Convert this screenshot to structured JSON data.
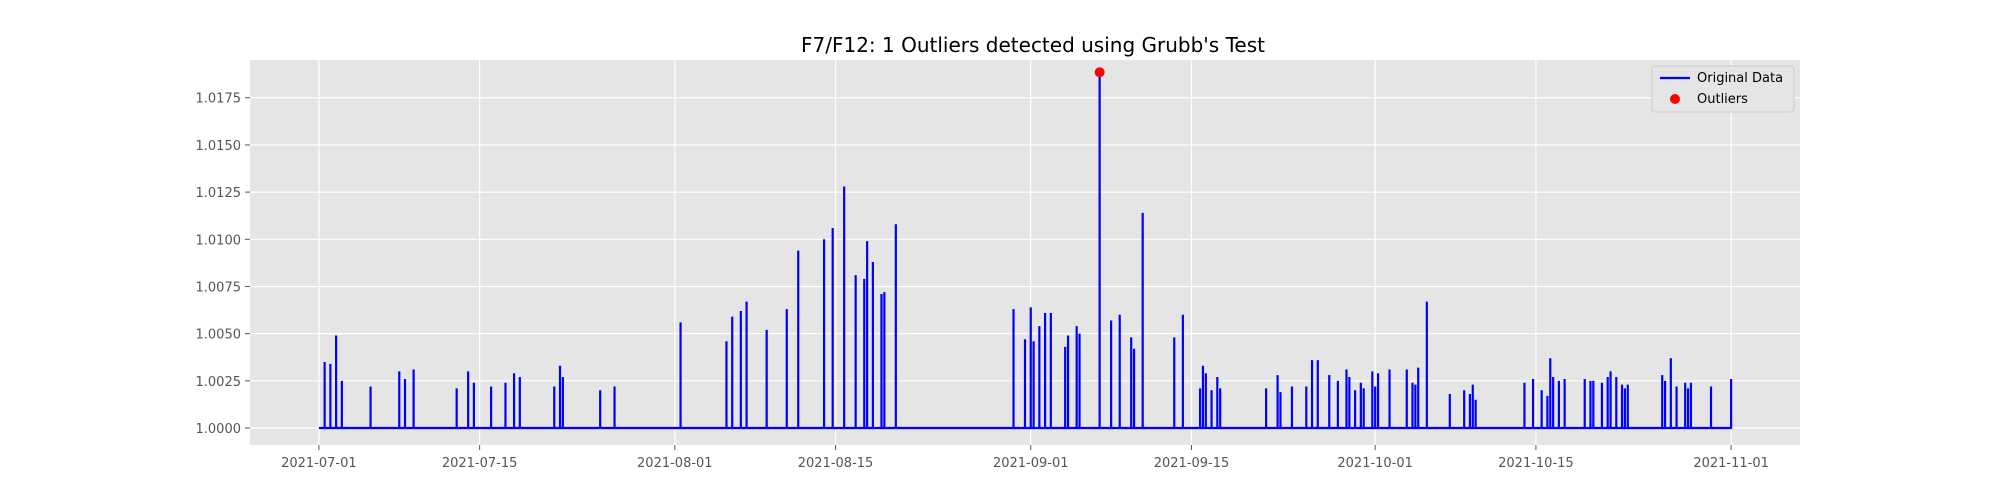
{
  "chart_data": {
    "type": "line",
    "title": "F7/F12: 1 Outliers detected using Grubb's Test",
    "xlabel": "",
    "ylabel": "",
    "x_start": "2021-07-01",
    "x_end": "2021-11-01",
    "xlim": [
      "2021-06-25",
      "2021-11-07"
    ],
    "ylim": [
      0.9991,
      1.0195
    ],
    "x_ticks": [
      "2021-07-01",
      "2021-07-15",
      "2021-08-01",
      "2021-08-15",
      "2021-09-01",
      "2021-09-15",
      "2021-10-01",
      "2021-10-15",
      "2021-11-01"
    ],
    "y_ticks": [
      1.0,
      1.0025,
      1.005,
      1.0075,
      1.01,
      1.0125,
      1.015,
      1.0175
    ],
    "y_tick_labels": [
      "1.0000",
      "1.0025",
      "1.0050",
      "1.0075",
      "1.0100",
      "1.0125",
      "1.0150",
      "1.0175"
    ],
    "baseline": 1.0,
    "grid": true,
    "legend_position": "top-right",
    "series": [
      {
        "name": "Original Data",
        "color": "#0000ff",
        "spikes": [
          [
            "2021-07-01T12:00",
            1.0035
          ],
          [
            "2021-07-02",
            1.0034
          ],
          [
            "2021-07-02T12:00",
            1.0049
          ],
          [
            "2021-07-03",
            1.0025
          ],
          [
            "2021-07-05T12:00",
            1.0022
          ],
          [
            "2021-07-08",
            1.003
          ],
          [
            "2021-07-08T12:00",
            1.0026
          ],
          [
            "2021-07-09T06:00",
            1.0031
          ],
          [
            "2021-07-13",
            1.0021
          ],
          [
            "2021-07-14",
            1.003
          ],
          [
            "2021-07-14T12:00",
            1.0024
          ],
          [
            "2021-07-16",
            1.0022
          ],
          [
            "2021-07-17T06:00",
            1.0024
          ],
          [
            "2021-07-18",
            1.0029
          ],
          [
            "2021-07-18T12:00",
            1.0027
          ],
          [
            "2021-07-21T12:00",
            1.0022
          ],
          [
            "2021-07-22",
            1.0033
          ],
          [
            "2021-07-22T06:00",
            1.0027
          ],
          [
            "2021-07-25T12:00",
            1.002
          ],
          [
            "2021-07-26T18:00",
            1.0022
          ],
          [
            "2021-08-01T12:00",
            1.0056
          ],
          [
            "2021-08-05T12:00",
            1.0046
          ],
          [
            "2021-08-06",
            1.0059
          ],
          [
            "2021-08-06T18:00",
            1.0062
          ],
          [
            "2021-08-07T06:00",
            1.0067
          ],
          [
            "2021-08-09",
            1.0052
          ],
          [
            "2021-08-10T18:00",
            1.0063
          ],
          [
            "2021-08-11T18:00",
            1.0094
          ],
          [
            "2021-08-14",
            1.01
          ],
          [
            "2021-08-14T18:00",
            1.0106
          ],
          [
            "2021-08-15T18:00",
            1.0128
          ],
          [
            "2021-08-16T18:00",
            1.0081
          ],
          [
            "2021-08-17T12:00",
            1.0079
          ],
          [
            "2021-08-17T18:00",
            1.0099
          ],
          [
            "2021-08-18T06:00",
            1.0088
          ],
          [
            "2021-08-19",
            1.0071
          ],
          [
            "2021-08-19T06:00",
            1.0072
          ],
          [
            "2021-08-20T06:00",
            1.0108
          ],
          [
            "2021-08-30T12:00",
            1.0063
          ],
          [
            "2021-08-31T12:00",
            1.0047
          ],
          [
            "2021-09-01",
            1.0064
          ],
          [
            "2021-09-01T06:00",
            1.0046
          ],
          [
            "2021-09-01T18:00",
            1.0054
          ],
          [
            "2021-09-02T06:00",
            1.0061
          ],
          [
            "2021-09-02T18:00",
            1.0061
          ],
          [
            "2021-09-04",
            1.0043
          ],
          [
            "2021-09-04T06:00",
            1.0049
          ],
          [
            "2021-09-05",
            1.0054
          ],
          [
            "2021-09-05T06:00",
            1.005
          ],
          [
            "2021-09-08",
            1.0057
          ],
          [
            "2021-09-08T18:00",
            1.006
          ],
          [
            "2021-09-09T18:00",
            1.0048
          ],
          [
            "2021-09-10",
            1.0042
          ],
          [
            "2021-09-10T18:00",
            1.0114
          ],
          [
            "2021-09-13T12:00",
            1.0048
          ],
          [
            "2021-09-14T06:00",
            1.006
          ],
          [
            "2021-09-15T18:00",
            1.0021
          ],
          [
            "2021-09-16",
            1.0033
          ],
          [
            "2021-09-16T06:00",
            1.0029
          ],
          [
            "2021-09-16T18:00",
            1.002
          ],
          [
            "2021-09-17T06:00",
            1.0027
          ],
          [
            "2021-09-17T12:00",
            1.0021
          ],
          [
            "2021-09-21T12:00",
            1.0021
          ],
          [
            "2021-09-22T12:00",
            1.0028
          ],
          [
            "2021-09-22T18:00",
            1.0019
          ],
          [
            "2021-09-23T18:00",
            1.0022
          ],
          [
            "2021-09-25",
            1.0022
          ],
          [
            "2021-09-25T12:00",
            1.0036
          ],
          [
            "2021-09-26",
            1.0036
          ],
          [
            "2021-09-27",
            1.0028
          ],
          [
            "2021-09-27T18:00",
            1.0025
          ],
          [
            "2021-09-28T12:00",
            1.0031
          ],
          [
            "2021-09-28T18:00",
            1.0027
          ],
          [
            "2021-09-29T06:00",
            1.002
          ],
          [
            "2021-09-29T18:00",
            1.0024
          ],
          [
            "2021-09-30",
            1.0021
          ],
          [
            "2021-09-30T18:00",
            1.003
          ],
          [
            "2021-10-01",
            1.0022
          ],
          [
            "2021-10-01T06:00",
            1.0029
          ],
          [
            "2021-10-02T06:00",
            1.0031
          ],
          [
            "2021-10-03T18:00",
            1.0031
          ],
          [
            "2021-10-04T06:00",
            1.0024
          ],
          [
            "2021-10-04T12:00",
            1.0023
          ],
          [
            "2021-10-04T18:00",
            1.0032
          ],
          [
            "2021-10-05T12:00",
            1.0067
          ],
          [
            "2021-10-07T12:00",
            1.0018
          ],
          [
            "2021-10-08T18:00",
            1.002
          ],
          [
            "2021-10-09T06:00",
            1.0018
          ],
          [
            "2021-10-09T12:00",
            1.0023
          ],
          [
            "2021-10-09T18:00",
            1.0015
          ],
          [
            "2021-10-14",
            1.0024
          ],
          [
            "2021-10-14T18:00",
            1.0026
          ],
          [
            "2021-10-15T12:00",
            1.002
          ],
          [
            "2021-10-16",
            1.0017
          ],
          [
            "2021-10-16T06:00",
            1.0037
          ],
          [
            "2021-10-16T12:00",
            1.0027
          ],
          [
            "2021-10-17",
            1.0025
          ],
          [
            "2021-10-17T12:00",
            1.0026
          ],
          [
            "2021-10-19T06:00",
            1.0026
          ],
          [
            "2021-10-19T18:00",
            1.0025
          ],
          [
            "2021-10-20",
            1.0025
          ],
          [
            "2021-10-20T18:00",
            1.0024
          ],
          [
            "2021-10-21T06:00",
            1.0027
          ],
          [
            "2021-10-21T12:00",
            1.003
          ],
          [
            "2021-10-22",
            1.0027
          ],
          [
            "2021-10-22T12:00",
            1.0023
          ],
          [
            "2021-10-22T18:00",
            1.0021
          ],
          [
            "2021-10-23",
            1.0023
          ],
          [
            "2021-10-26",
            1.0028
          ],
          [
            "2021-10-26T06:00",
            1.0025
          ],
          [
            "2021-10-26T18:00",
            1.0037
          ],
          [
            "2021-10-27T06:00",
            1.0022
          ],
          [
            "2021-10-28",
            1.0024
          ],
          [
            "2021-10-28T06:00",
            1.0021
          ],
          [
            "2021-10-28T12:00",
            1.0024
          ],
          [
            "2021-10-30T06:00",
            1.0022
          ],
          [
            "2021-11-01",
            1.0026
          ]
        ],
        "outlier_spike": [
          "2021-09-07",
          1.01885
        ]
      },
      {
        "name": "Outliers",
        "color": "#ff0000",
        "points": [
          [
            "2021-09-07",
            1.01885
          ]
        ]
      }
    ]
  }
}
